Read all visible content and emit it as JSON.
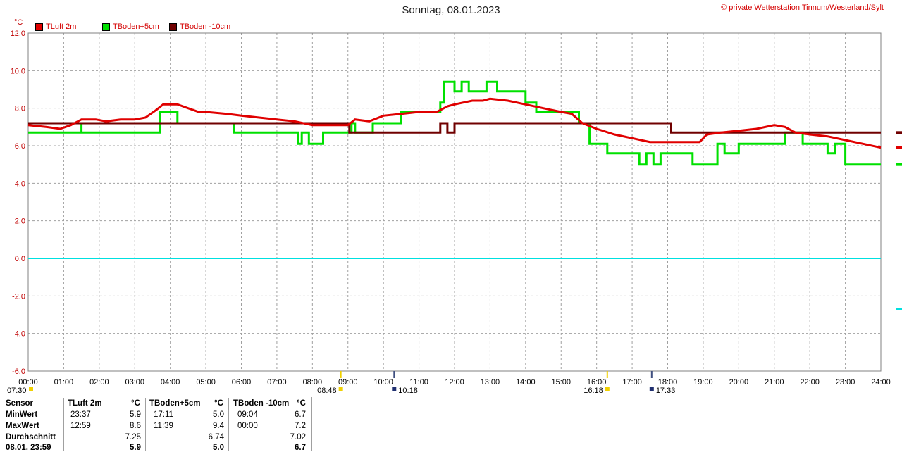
{
  "header": {
    "title": "Sonntag, 08.01.2023",
    "copyright": "© private Wetterstation Tinnum/Westerland/Sylt",
    "unit": "°C"
  },
  "legend": [
    {
      "label": "TLuft 2m",
      "color": "#e00000"
    },
    {
      "label": "TBoden+5cm",
      "color": "#00e000"
    },
    {
      "label": "TBoden -10cm",
      "color": "#700000"
    }
  ],
  "sun_events": {
    "dawn": "07:30",
    "sunrise": "08:48",
    "solar_noon": "10:18",
    "sunset": "16:18",
    "dusk": "17:33"
  },
  "chart_data": {
    "type": "line",
    "title": "Sonntag, 08.01.2023",
    "xlabel": "",
    "ylabel": "°C",
    "xlim": [
      0,
      24
    ],
    "ylim": [
      -6,
      12
    ],
    "x_ticks": [
      "00:00",
      "01:00",
      "02:00",
      "03:00",
      "04:00",
      "05:00",
      "06:00",
      "07:00",
      "08:00",
      "09:00",
      "10:00",
      "11:00",
      "12:00",
      "13:00",
      "14:00",
      "15:00",
      "16:00",
      "17:00",
      "18:00",
      "19:00",
      "20:00",
      "21:00",
      "22:00",
      "23:00",
      "24:00"
    ],
    "y_ticks": [
      "12.0",
      "10.0",
      "8.0",
      "6.0",
      "4.0",
      "2.0",
      "0.0",
      "-2.0",
      "-4.0",
      "-6.0"
    ],
    "grid": true,
    "legend_position": "top-left",
    "reference_line": {
      "y": 0,
      "color": "#00e0e0"
    },
    "series": [
      {
        "name": "TLuft 2m",
        "color": "#e00000",
        "x": [
          0,
          0.5,
          0.9,
          1.2,
          1.5,
          1.9,
          2.2,
          2.6,
          3,
          3.3,
          3.6,
          3.8,
          4.2,
          4.5,
          4.8,
          5,
          5.6,
          6,
          6.5,
          7,
          7.5,
          8,
          8.5,
          9,
          9.2,
          9.6,
          10,
          10.5,
          11,
          11.5,
          11.8,
          12,
          12.5,
          12.8,
          13,
          13.5,
          14,
          14.5,
          15,
          15.3,
          15.6,
          16,
          16.5,
          17,
          17.5,
          18,
          18.5,
          18.9,
          19.1,
          19.5,
          20,
          20.5,
          21,
          21.3,
          21.6,
          22,
          22.5,
          23,
          23.5,
          24
        ],
        "y": [
          7.1,
          7.0,
          6.9,
          7.1,
          7.4,
          7.4,
          7.3,
          7.4,
          7.4,
          7.5,
          7.9,
          8.2,
          8.2,
          8.0,
          7.8,
          7.8,
          7.7,
          7.6,
          7.5,
          7.4,
          7.3,
          7.1,
          7.1,
          7.1,
          7.4,
          7.3,
          7.6,
          7.7,
          7.8,
          7.8,
          8.1,
          8.2,
          8.4,
          8.4,
          8.5,
          8.4,
          8.2,
          8.0,
          7.8,
          7.7,
          7.2,
          6.9,
          6.6,
          6.4,
          6.2,
          6.2,
          6.2,
          6.2,
          6.6,
          6.7,
          6.8,
          6.9,
          7.1,
          7.0,
          6.7,
          6.6,
          6.5,
          6.3,
          6.1,
          5.9
        ]
      },
      {
        "name": "TBoden+5cm",
        "color": "#00e000",
        "x": [
          0,
          1.5,
          1.5,
          3.4,
          3.7,
          4.2,
          4.2,
          5.8,
          7.5,
          7.6,
          7.7,
          7.8,
          7.9,
          8.2,
          8.3,
          8.5,
          9.1,
          9.2,
          9.5,
          9.7,
          10.5,
          10.9,
          11.2,
          11.6,
          11.7,
          12,
          12.2,
          12.4,
          12.9,
          13.2,
          13.5,
          14,
          14.3,
          15,
          15.5,
          15.8,
          16.3,
          16.8,
          17.2,
          17.4,
          17.6,
          17.8,
          18.7,
          19.4,
          19.6,
          20,
          20.5,
          21,
          21.3,
          21.8,
          22.5,
          22.7,
          23,
          24
        ],
        "y": [
          6.7,
          7.2,
          6.7,
          6.7,
          7.8,
          7.8,
          7.2,
          6.7,
          6.7,
          6.1,
          6.7,
          6.7,
          6.1,
          6.1,
          6.7,
          6.7,
          7.2,
          6.7,
          6.7,
          7.2,
          7.8,
          7.8,
          7.8,
          8.3,
          9.4,
          8.9,
          9.4,
          8.9,
          9.4,
          8.9,
          8.9,
          8.3,
          7.8,
          7.8,
          7.2,
          6.1,
          5.6,
          5.6,
          5.0,
          5.6,
          5.0,
          5.6,
          5.0,
          6.1,
          5.6,
          6.1,
          6.1,
          6.1,
          6.7,
          6.1,
          5.6,
          6.1,
          5.0,
          5.0
        ]
      },
      {
        "name": "TBoden -10cm",
        "color": "#700000",
        "x": [
          0,
          9.04,
          9.04,
          11.6,
          11.6,
          11.8,
          11.8,
          12,
          12,
          18.1,
          18.1,
          24
        ],
        "y": [
          7.2,
          7.2,
          6.7,
          6.7,
          7.2,
          7.2,
          6.7,
          6.7,
          7.2,
          7.2,
          6.7,
          6.7
        ]
      }
    ]
  },
  "stats": {
    "headers": [
      "Sensor",
      "TLuft 2m",
      "°C",
      "TBoden+5cm",
      "°C",
      "TBoden -10cm",
      "°C"
    ],
    "rows": [
      {
        "label": "MinWert",
        "t1": "23:37",
        "v1": "5.9",
        "t2": "17:11",
        "v2": "5.0",
        "t3": "09:04",
        "v3": "6.7"
      },
      {
        "label": "MaxWert",
        "t1": "12:59",
        "v1": "8.6",
        "t2": "11:39",
        "v2": "9.4",
        "t3": "00:00",
        "v3": "7.2"
      },
      {
        "label": "Durchschnitt",
        "t1": "",
        "v1": "7.25",
        "t2": "",
        "v2": "6.74",
        "t3": "",
        "v3": "7.02"
      },
      {
        "label": "08.01. 23:59",
        "t1": "",
        "v1": "5.9",
        "t2": "",
        "v2": "5.0",
        "t3": "",
        "v3": "6.7"
      }
    ]
  }
}
